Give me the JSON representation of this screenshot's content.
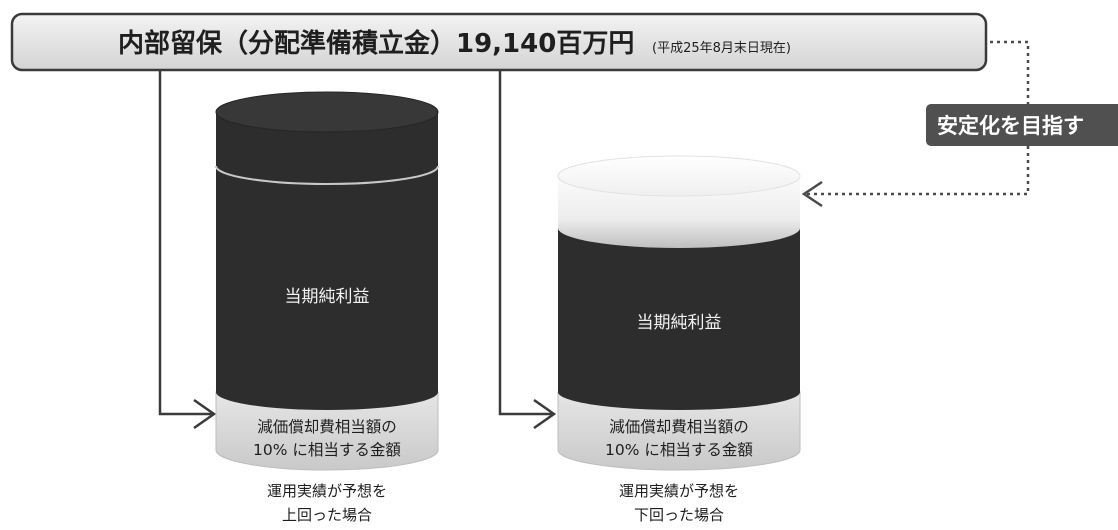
{
  "banner": {
    "title": "内部留保（分配準備積立金）19,140百万円",
    "note": "(平成25年8月末日現在)"
  },
  "badge": {
    "label": "安定化を目指す"
  },
  "left_cylinder": {
    "profit_label": "当期純利益",
    "base_line1": "減価償却費相当額の",
    "base_line2": "10% に相当する金額",
    "caption_line1": "運用実績が予想を",
    "caption_line2": "上回った場合"
  },
  "right_cylinder": {
    "profit_label": "当期純利益",
    "base_line1": "減価償却費相当額の",
    "base_line2": "10% に相当する金額",
    "caption_line1": "運用実績が予想を",
    "caption_line2": "下回った場合"
  }
}
